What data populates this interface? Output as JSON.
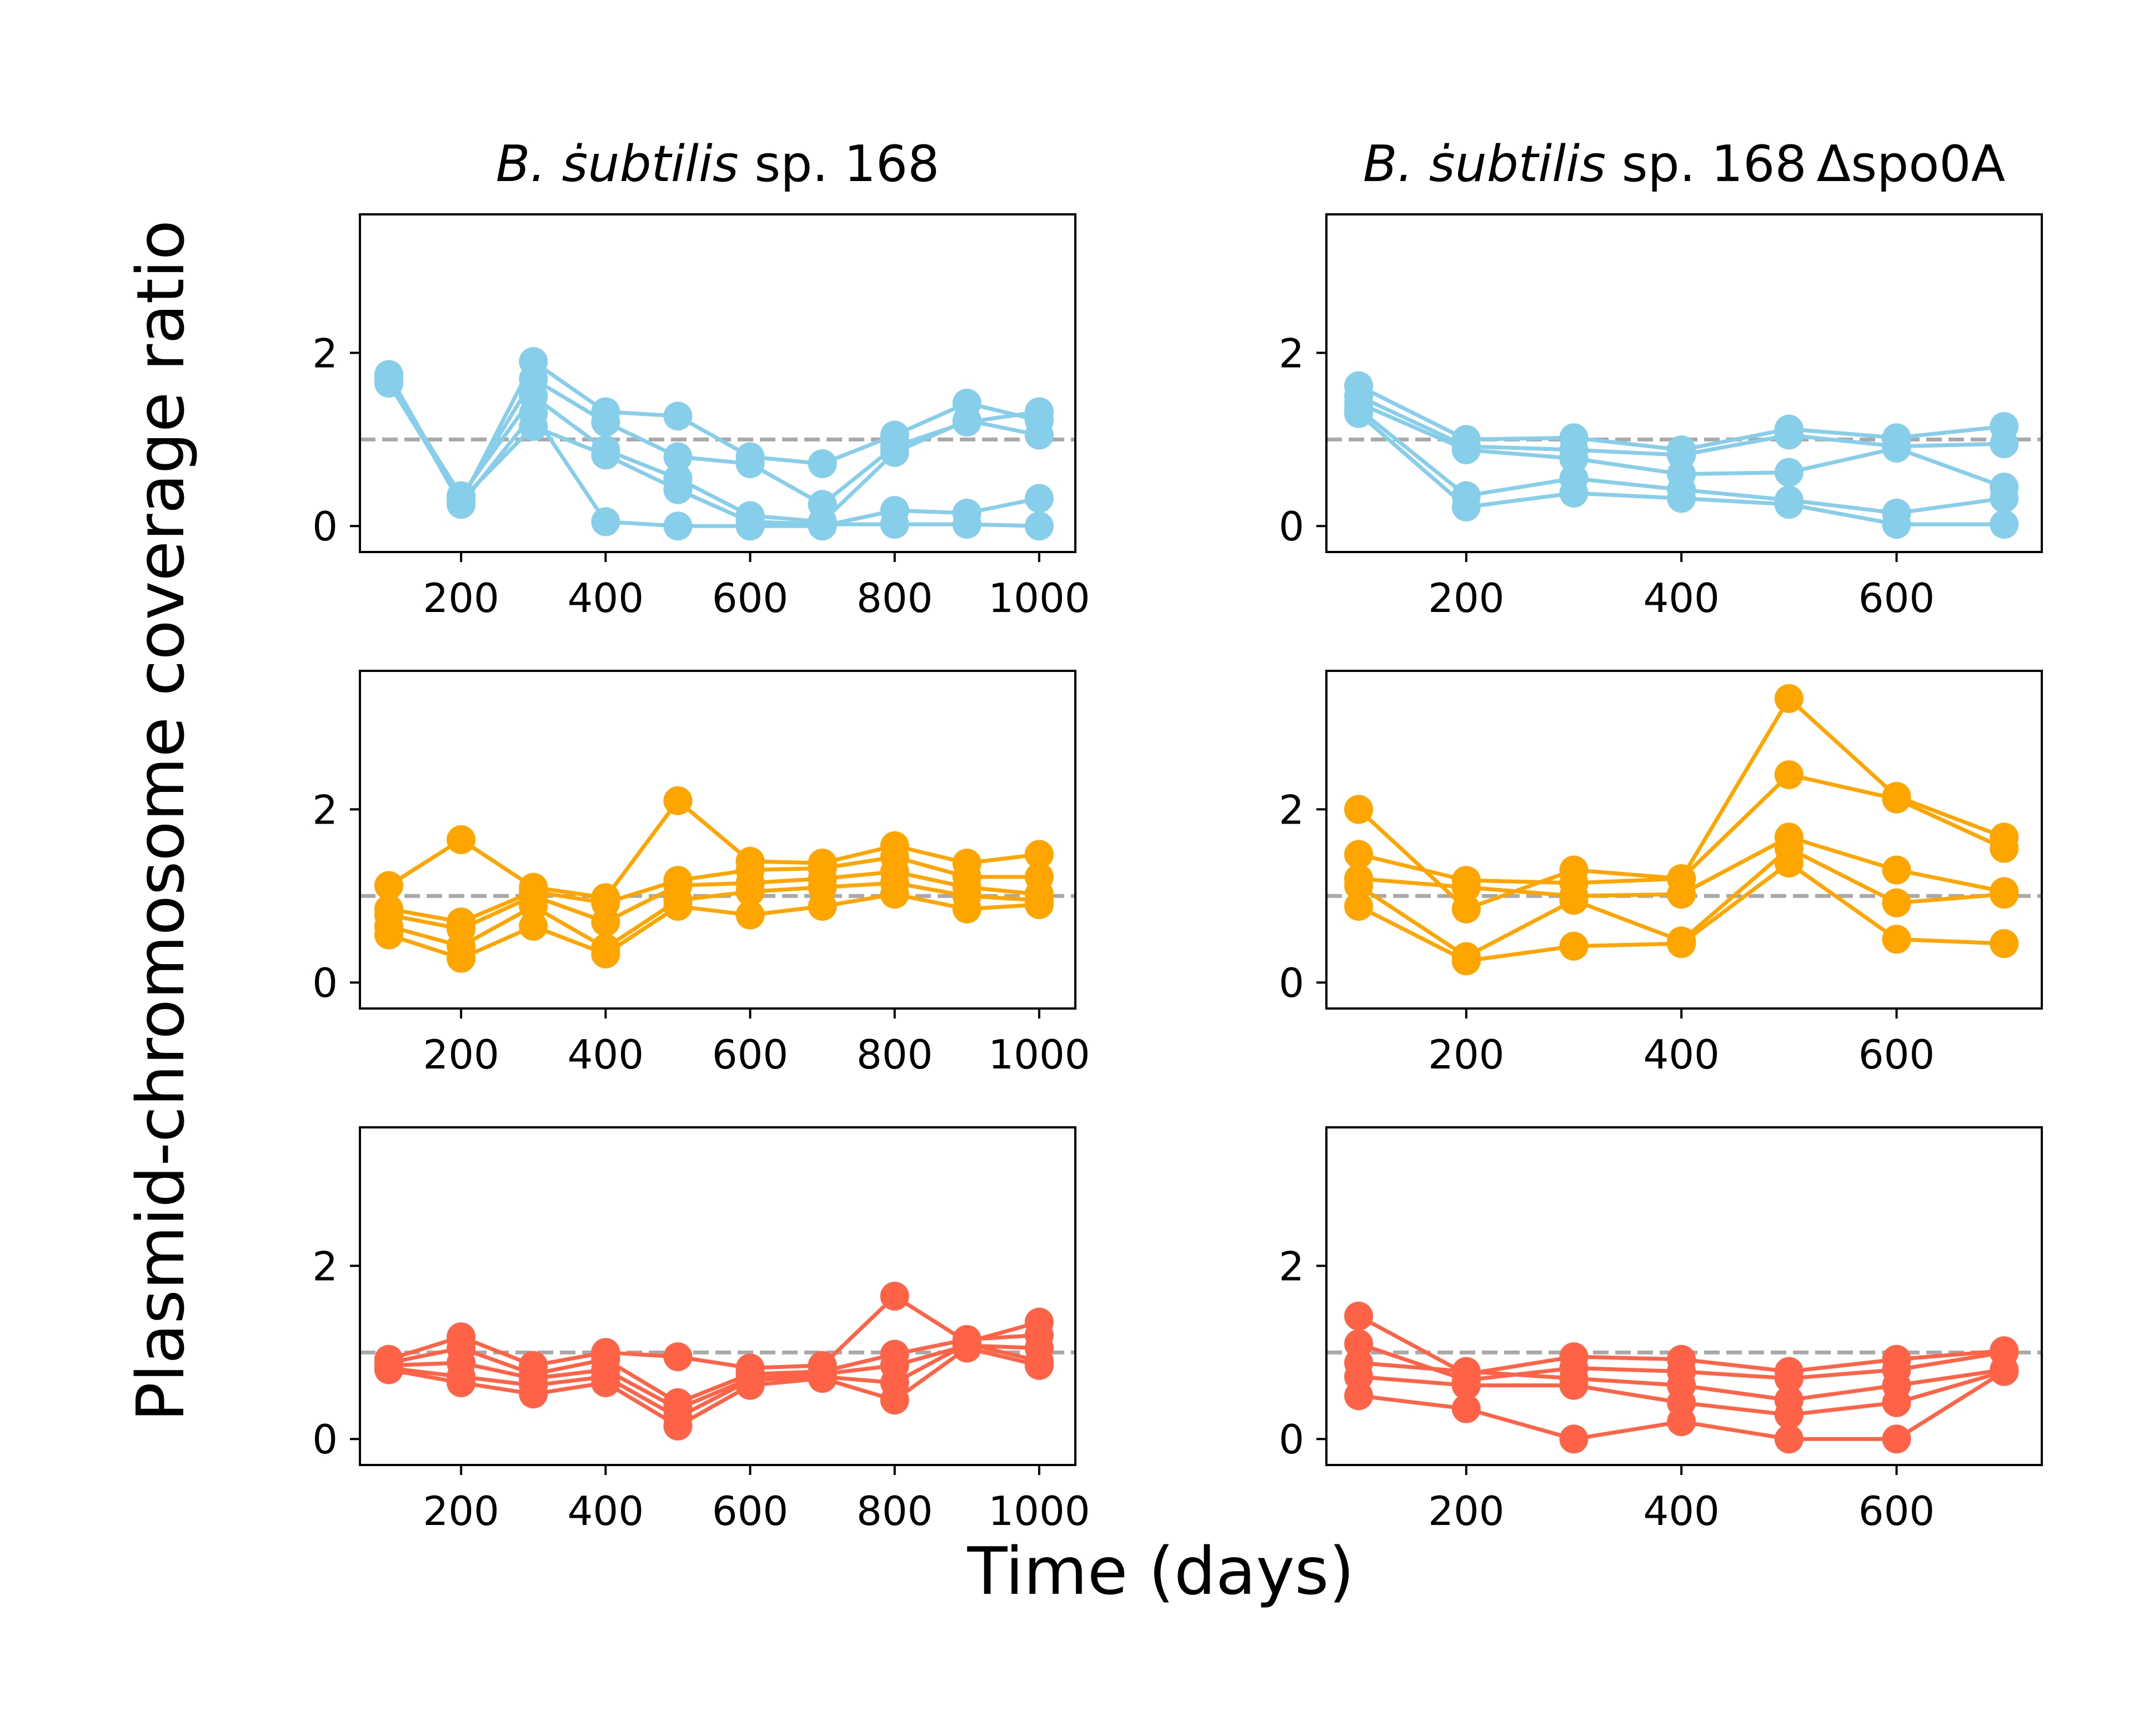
{
  "figure": {
    "xlabel": "Time (days)",
    "ylabel": "Plasmid-chromosome coverage ratio",
    "reference_line": 1,
    "colors": {
      "row1": "#87ceeb",
      "row2": "#ffa500",
      "row3": "#ff6347",
      "reference": "#a9a9a9"
    }
  },
  "chart_data": [
    {
      "type": "line",
      "panel": "row1-col1",
      "title_italic": "B. ṡubtilis",
      "title_rest": " sp. 168",
      "xlim": [
        60,
        1050
      ],
      "ylim": [
        -0.3,
        3.6
      ],
      "xticks": [
        200,
        400,
        600,
        800,
        1000
      ],
      "yticks": [
        0,
        2
      ],
      "color": "#87ceeb",
      "x": [
        100,
        200,
        300,
        400,
        500,
        600,
        700,
        800,
        900,
        1000
      ],
      "series": [
        {
          "values": [
            1.75,
            0.28,
            1.9,
            1.32,
            1.27,
            0.8,
            0.72,
            1.05,
            1.42,
            1.22
          ]
        },
        {
          "values": [
            1.7,
            0.32,
            1.7,
            1.2,
            0.8,
            0.72,
            0.25,
            0.92,
            1.2,
            1.32
          ]
        },
        {
          "values": [
            1.68,
            0.35,
            1.5,
            0.88,
            0.55,
            0.12,
            0.05,
            0.85,
            1.22,
            1.05
          ]
        },
        {
          "values": [
            1.72,
            0.25,
            1.3,
            0.05,
            0.0,
            0.0,
            0.0,
            0.18,
            0.15,
            0.32
          ]
        },
        {
          "values": [
            1.65,
            0.3,
            1.15,
            0.82,
            0.42,
            0.05,
            0.02,
            0.02,
            0.02,
            0.0
          ]
        }
      ]
    },
    {
      "type": "line",
      "panel": "row1-col2",
      "title_italic": "B. ṡubtilis",
      "title_rest": " sp. 168 Δspo0A",
      "xlim": [
        70,
        735
      ],
      "ylim": [
        -0.3,
        3.6
      ],
      "xticks": [
        200,
        400,
        600
      ],
      "yticks": [
        0,
        2
      ],
      "color": "#87ceeb",
      "x": [
        100,
        200,
        300,
        400,
        500,
        600,
        700
      ],
      "series": [
        {
          "values": [
            1.62,
            1.0,
            1.02,
            0.88,
            1.12,
            1.02,
            1.15
          ]
        },
        {
          "values": [
            1.5,
            0.92,
            0.88,
            0.82,
            1.05,
            0.92,
            0.95
          ]
        },
        {
          "values": [
            1.42,
            0.88,
            0.78,
            0.6,
            0.62,
            0.9,
            0.45
          ]
        },
        {
          "values": [
            1.35,
            0.35,
            0.55,
            0.42,
            0.3,
            0.15,
            0.32
          ]
        },
        {
          "values": [
            1.3,
            0.22,
            0.38,
            0.32,
            0.25,
            0.02,
            0.02
          ]
        }
      ]
    },
    {
      "type": "line",
      "panel": "row2-col1",
      "xlim": [
        60,
        1050
      ],
      "ylim": [
        -0.3,
        3.6
      ],
      "xticks": [
        200,
        400,
        600,
        800,
        1000
      ],
      "yticks": [
        0,
        2
      ],
      "color": "#ffa500",
      "x": [
        100,
        200,
        300,
        400,
        500,
        600,
        700,
        800,
        900,
        1000
      ],
      "series": [
        {
          "values": [
            1.12,
            1.65,
            1.1,
            0.98,
            2.1,
            1.4,
            1.38,
            1.58,
            1.38,
            1.48
          ]
        },
        {
          "values": [
            0.85,
            0.7,
            1.05,
            0.92,
            1.18,
            1.3,
            1.32,
            1.45,
            1.22,
            1.22
          ]
        },
        {
          "values": [
            0.78,
            0.62,
            1.0,
            0.7,
            1.12,
            1.15,
            1.2,
            1.28,
            1.1,
            1.02
          ]
        },
        {
          "values": [
            0.65,
            0.42,
            0.88,
            0.4,
            0.95,
            1.05,
            1.1,
            1.15,
            1.0,
            0.95
          ]
        },
        {
          "values": [
            0.55,
            0.28,
            0.65,
            0.33,
            0.88,
            0.78,
            0.88,
            1.02,
            0.85,
            0.9
          ]
        }
      ]
    },
    {
      "type": "line",
      "panel": "row2-col2",
      "xlim": [
        70,
        735
      ],
      "ylim": [
        -0.3,
        3.6
      ],
      "xticks": [
        200,
        400,
        600
      ],
      "yticks": [
        0,
        2
      ],
      "color": "#ffa500",
      "x": [
        100,
        200,
        300,
        400,
        500,
        600,
        700
      ],
      "series": [
        {
          "values": [
            2.0,
            0.85,
            1.3,
            1.2,
            3.28,
            2.15,
            1.68
          ]
        },
        {
          "values": [
            1.48,
            1.18,
            1.15,
            1.2,
            2.4,
            2.12,
            1.55
          ]
        },
        {
          "values": [
            1.2,
            1.1,
            1.0,
            1.02,
            1.68,
            1.3,
            1.05
          ]
        },
        {
          "values": [
            1.12,
            0.3,
            0.95,
            0.48,
            1.55,
            0.92,
            1.02
          ]
        },
        {
          "values": [
            0.88,
            0.25,
            0.42,
            0.45,
            1.38,
            0.5,
            0.45
          ]
        }
      ]
    },
    {
      "type": "line",
      "panel": "row3-col1",
      "xlim": [
        60,
        1050
      ],
      "ylim": [
        -0.3,
        3.6
      ],
      "xticks": [
        200,
        400,
        600,
        800,
        1000
      ],
      "yticks": [
        0,
        2
      ],
      "color": "#ff6347",
      "x": [
        100,
        200,
        300,
        400,
        500,
        600,
        700,
        800,
        900,
        1000
      ],
      "series": [
        {
          "values": [
            0.92,
            1.18,
            0.85,
            1.0,
            0.95,
            0.82,
            0.85,
            1.65,
            1.12,
            1.35
          ]
        },
        {
          "values": [
            0.88,
            1.05,
            0.75,
            0.92,
            0.42,
            0.75,
            0.78,
            0.98,
            1.15,
            1.2
          ]
        },
        {
          "values": [
            0.85,
            0.88,
            0.7,
            0.8,
            0.35,
            0.7,
            0.75,
            0.85,
            1.08,
            1.05
          ]
        },
        {
          "values": [
            0.82,
            0.72,
            0.62,
            0.72,
            0.25,
            0.68,
            0.72,
            0.65,
            1.1,
            0.9
          ]
        },
        {
          "values": [
            0.8,
            0.65,
            0.52,
            0.65,
            0.15,
            0.62,
            0.7,
            0.45,
            1.05,
            0.85
          ]
        }
      ]
    },
    {
      "type": "line",
      "panel": "row3-col2",
      "xlim": [
        70,
        735
      ],
      "ylim": [
        -0.3,
        3.6
      ],
      "xticks": [
        200,
        400,
        600
      ],
      "yticks": [
        0,
        2
      ],
      "color": "#ff6347",
      "x": [
        100,
        200,
        300,
        400,
        500,
        600,
        700
      ],
      "series": [
        {
          "values": [
            1.42,
            0.75,
            0.95,
            0.92,
            0.78,
            0.92,
            1.02
          ]
        },
        {
          "values": [
            1.1,
            0.68,
            0.82,
            0.78,
            0.7,
            0.8,
            1.0
          ]
        },
        {
          "values": [
            0.88,
            0.78,
            0.7,
            0.62,
            0.45,
            0.62,
            0.8
          ]
        },
        {
          "values": [
            0.72,
            0.62,
            0.62,
            0.42,
            0.28,
            0.42,
            0.78
          ]
        },
        {
          "values": [
            0.5,
            0.35,
            0.0,
            0.2,
            0.0,
            0.0,
            0.78
          ]
        }
      ]
    }
  ]
}
